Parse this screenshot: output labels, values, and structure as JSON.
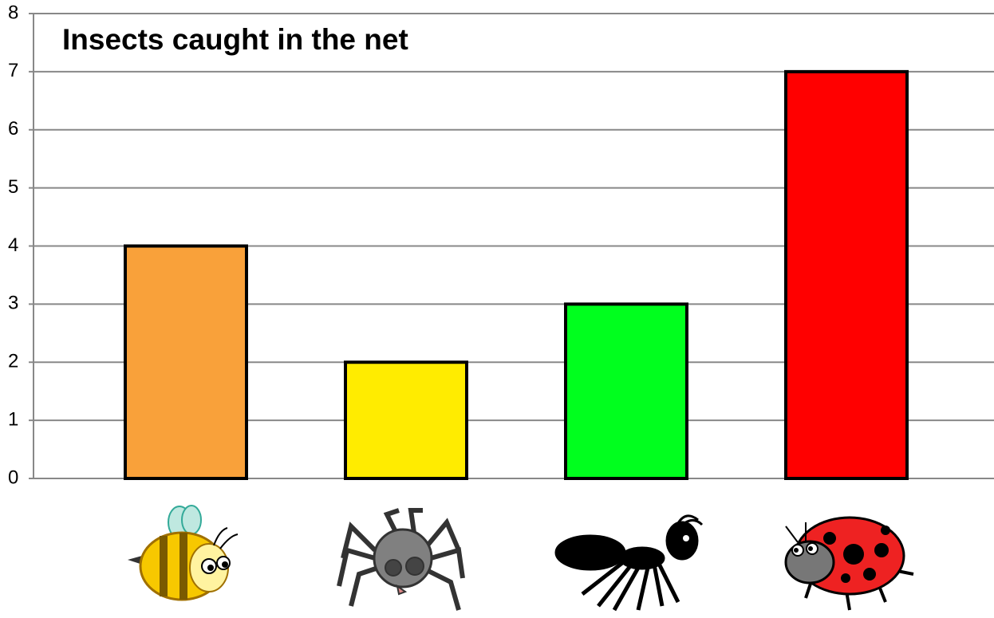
{
  "chart_data": {
    "type": "bar",
    "title": "Insects caught in the net",
    "categories": [
      null,
      null,
      null,
      null
    ],
    "values": [
      4,
      2,
      3,
      7
    ],
    "colors": [
      "#f9a13a",
      "#ffec00",
      "#00ff1e",
      "#ff0000"
    ],
    "ylim": [
      0,
      8
    ],
    "yticks": [
      0,
      1,
      2,
      3,
      4,
      5,
      6,
      7,
      8
    ],
    "grid": true
  }
}
